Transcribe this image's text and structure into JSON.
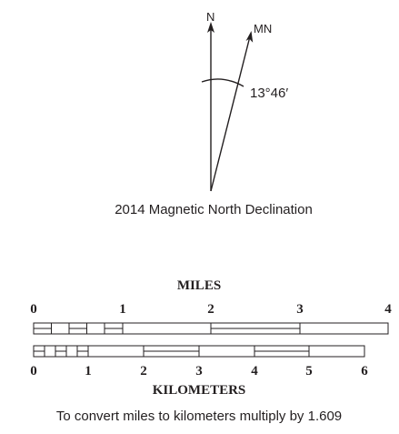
{
  "north_arrow": {
    "true_north_label": "N",
    "magnetic_north_label": "MN",
    "declination_angle": "13°46′",
    "caption": "2014 Magnetic North Declination"
  },
  "scale_bar": {
    "miles_title": "MILES",
    "miles_ticks": [
      "0",
      "1",
      "2",
      "3",
      "4"
    ],
    "km_ticks": [
      "0",
      "1",
      "2",
      "3",
      "4",
      "5",
      "6"
    ],
    "km_title": "KILOMETERS",
    "conversion_note": "To convert miles to kilometers multiply by 1.609"
  },
  "colors": {
    "ink": "#231f20",
    "background": "#ffffff"
  }
}
